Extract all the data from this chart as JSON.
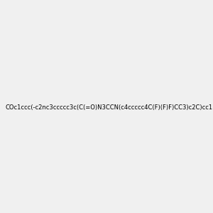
{
  "smiles": "COc1ccc(-c2nc3ccccc3c(C(=O)N3CCN(c4ccccc4C(F)(F)F)CC3)c2C)cc1",
  "image_size": 300,
  "background_color": "#f0f0f0",
  "atom_colors": {
    "N": "#0000ff",
    "O": "#ff0000",
    "F": "#ff00ff"
  }
}
